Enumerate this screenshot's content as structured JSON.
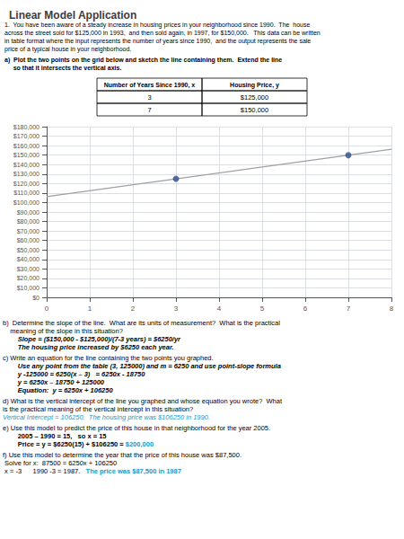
{
  "chart_data": {
    "type": "line",
    "title": "Linear Model Application",
    "subtitle": [
      "1.  You have been aware of a steady increase in housing prices in your neighborhood since 1990.  The  house",
      "across the street sold for $125,000 in 1993,  and then sold again, in 1997, for $150,000.   This data can be written",
      "in table format where the input represents the number of years since 1990,  and the output represents the sale",
      "price of a typical house in your neighborhood.",
      "a)  Plot the two points on the grid below and sketch the line containing them.  Extend the line",
      "     so that it intersects the vertical axis."
    ],
    "table": {
      "headers": [
        "Number of Years Since 1990, x",
        "Housing Price, y"
      ],
      "rows": [
        [
          "3",
          "$125,000"
        ],
        [
          "7",
          "$150,000"
        ]
      ]
    },
    "series": [
      {
        "type": "line",
        "color": "#a0a0a0",
        "x": [
          0,
          8
        ],
        "values": [
          106250,
          156250
        ]
      },
      {
        "type": "scatter",
        "color": "#2e4b8b",
        "x": [
          3,
          7
        ],
        "values": [
          125000,
          150000
        ]
      }
    ],
    "xlim": [
      0,
      8
    ],
    "xticks": [
      0,
      1,
      2,
      3,
      4,
      5,
      6,
      7,
      8
    ],
    "ylim": [
      0,
      180000
    ],
    "yticks": [
      {
        "value": 0,
        "label": "$0"
      },
      {
        "value": 10000,
        "label": "$10,000"
      },
      {
        "value": 20000,
        "label": "$20,000"
      },
      {
        "value": 30000,
        "label": "$30,000"
      },
      {
        "value": 40000,
        "label": "$40,000"
      },
      {
        "value": 50000,
        "label": "$50,000"
      },
      {
        "value": 60000,
        "label": "$60,000"
      },
      {
        "value": 70000,
        "label": "$70,000"
      },
      {
        "value": 80000,
        "label": "$80,000"
      },
      {
        "value": 90000,
        "label": "$90,000"
      },
      {
        "value": 100000,
        "label": "$100,000"
      },
      {
        "value": 110000,
        "label": "$110,000"
      },
      {
        "value": 120000,
        "label": "$120,000"
      },
      {
        "value": 130000,
        "label": "$130,000"
      },
      {
        "value": 140000,
        "label": "$140,000"
      },
      {
        "value": 150000,
        "label": "$150,000"
      },
      {
        "value": 160000,
        "label": "$160,000"
      },
      {
        "value": 170000,
        "label": "$170,000"
      },
      {
        "value": 180000,
        "label": "$180,000"
      }
    ],
    "grid": true,
    "annotations": [
      "b)  Determine the slope of the line.  What are its units of measurement?  What is the practical",
      "    meaning of the slope in this situation?",
      "        Slope = ($150,000 - $125,000)/(7-3 years) = $6250/yr",
      "        The housing price increased by $6250 each year.",
      "c) Write an equation for the line containing the two points you graphed.",
      "        Use any point from the table (3, 125000) and m = 6250 and use point-slope formula",
      "        y -125000 = 6250(x – 3)   = 6250x - 18750",
      "        y = 6250x – 18750 + 125000",
      "        Equation:  y = 6250x + 106250",
      "d) What is the vertical intercept of the line you graphed and whose equation you wrote?  What",
      "is the practical meaning of the vertical intercept in this situation?",
      [
        {
          "text": "Vertical Intercept = 106250.  The housing price was $106250 in 1990.",
          "color": "#2196c8"
        }
      ],
      "e) Use this model to predict the price of this house in that neighborhood for the year 2005.",
      "        2005 – 1990 = 15,   so x = 15",
      [
        "        Price = y = $6250(15) + $106250 = ",
        {
          "text": "$200,000",
          "color": "#2196c8"
        }
      ],
      "f) Use this model to determine the year that the price of this house was $87,500.",
      " Solve for x:  87500 = 6250x + 106250",
      [
        " x = -3      1990 -3 = 1987.   ",
        {
          "text": "The price was $87,500 in 1987",
          "color": "#2196c8"
        }
      ]
    ]
  }
}
